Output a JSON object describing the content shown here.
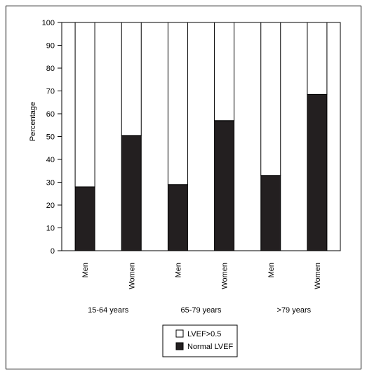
{
  "chart_data": {
    "type": "bar",
    "stacked": true,
    "ylabel": "Percentage",
    "ylim": [
      0,
      100
    ],
    "yticks": [
      0,
      10,
      20,
      30,
      40,
      50,
      60,
      70,
      80,
      90,
      100
    ],
    "grid": false,
    "legend_position": "bottom-center",
    "categories": [
      "Men",
      "Women",
      "Men",
      "Women",
      "Men",
      "Women"
    ],
    "groups": [
      "15-64 years",
      "65-79 years",
      ">79 years"
    ],
    "series": [
      {
        "name": "Normal LVEF",
        "color": "#231f20",
        "values": [
          28,
          50.5,
          29,
          57,
          33,
          68.5
        ]
      },
      {
        "name": "LVEF>0.5",
        "color": "#ffffff",
        "values": [
          72,
          49.5,
          71,
          43,
          67,
          31.5
        ]
      }
    ]
  }
}
